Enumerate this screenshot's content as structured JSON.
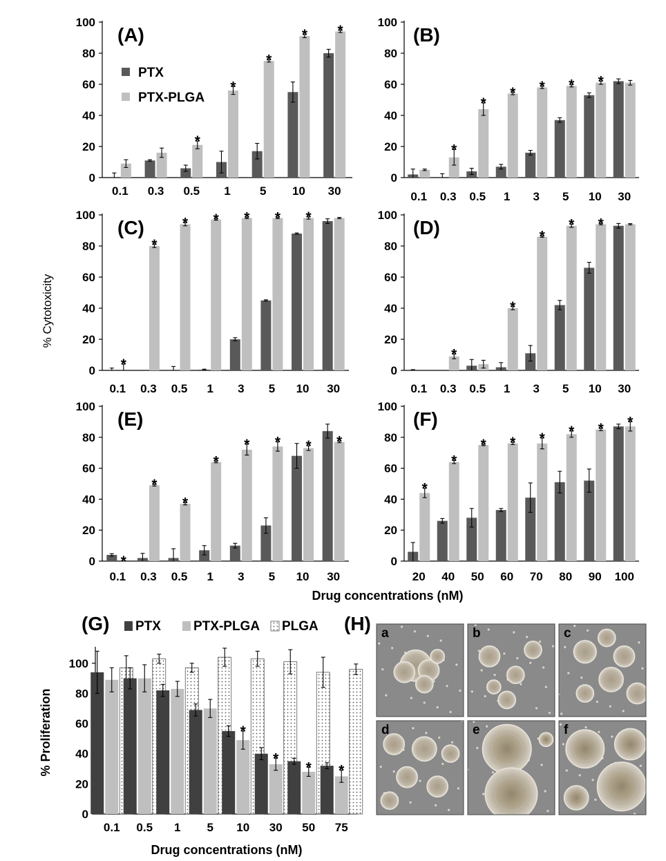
{
  "chart_data": [
    {
      "id": "A",
      "panel_label": "(A)",
      "type": "bar",
      "ylim": [
        0,
        100
      ],
      "yticks": [
        "0",
        "20",
        "40",
        "60",
        "80",
        "100"
      ],
      "categories": [
        "0.1",
        "0.3",
        "0.5",
        "1",
        "5",
        "10",
        "30"
      ],
      "legend": [
        "PTX",
        "PTX-PLGA"
      ],
      "series": [
        {
          "name": "PTX",
          "color": "#595959",
          "values": [
            0,
            11,
            6,
            10,
            17,
            55,
            80
          ],
          "errors": [
            3,
            0.5,
            2,
            7,
            5,
            6.5,
            2.5
          ],
          "stars": [
            false,
            false,
            false,
            false,
            false,
            false,
            false
          ]
        },
        {
          "name": "PTX-PLGA",
          "color": "#bfbfbf",
          "values": [
            9,
            16,
            21,
            56,
            75,
            91,
            94
          ],
          "errors": [
            2.5,
            3,
            2.5,
            2.5,
            0.7,
            1,
            0.7
          ],
          "stars": [
            false,
            false,
            true,
            true,
            true,
            true,
            true
          ]
        }
      ]
    },
    {
      "id": "B",
      "panel_label": "(B)",
      "type": "bar",
      "ylim": [
        0,
        100
      ],
      "yticks": [
        "0",
        "20",
        "40",
        "60",
        "80",
        "100"
      ],
      "categories": [
        "0.1",
        "0.3",
        "0.5",
        "1",
        "3",
        "5",
        "10",
        "30"
      ],
      "series": [
        {
          "name": "PTX",
          "color": "#595959",
          "values": [
            2,
            0,
            4,
            7,
            16,
            37,
            53,
            62
          ],
          "errors": [
            3.5,
            2.5,
            2,
            1.5,
            1.5,
            1.5,
            1.5,
            1.5
          ],
          "stars": [
            false,
            false,
            false,
            false,
            false,
            false,
            false,
            false
          ]
        },
        {
          "name": "PTX-PLGA",
          "color": "#bfbfbf",
          "values": [
            5,
            13,
            44,
            54,
            58,
            59,
            61,
            61
          ],
          "errors": [
            0.5,
            5,
            4,
            0.7,
            0.7,
            0.7,
            1,
            1.5
          ],
          "stars": [
            false,
            true,
            true,
            true,
            true,
            true,
            true,
            false
          ]
        }
      ]
    },
    {
      "id": "C",
      "panel_label": "(C)",
      "type": "bar",
      "ylim": [
        0,
        100
      ],
      "yticks": [
        "0",
        "20",
        "40",
        "60",
        "80",
        "100"
      ],
      "categories": [
        "0.1",
        "0.3",
        "0.5",
        "1",
        "3",
        "5",
        "10",
        "30"
      ],
      "series": [
        {
          "name": "PTX",
          "color": "#595959",
          "values": [
            0,
            0,
            0,
            0.5,
            20,
            45,
            88,
            96
          ],
          "errors": [
            1.5,
            0,
            2.5,
            0.3,
            1,
            0.4,
            0.4,
            1.5
          ],
          "stars": [
            false,
            false,
            false,
            false,
            false,
            false,
            false,
            false
          ]
        },
        {
          "name": "PTX-PLGA",
          "color": "#bfbfbf",
          "values": [
            0,
            80,
            94,
            97,
            98,
            98,
            98,
            98
          ],
          "errors": [
            4,
            1,
            1,
            0.4,
            0.4,
            0.4,
            0.7,
            0.4
          ],
          "stars": [
            true,
            true,
            true,
            true,
            true,
            true,
            true,
            false
          ]
        }
      ]
    },
    {
      "id": "D",
      "panel_label": "(D)",
      "type": "bar",
      "ylim": [
        0,
        100
      ],
      "yticks": [
        "0",
        "20",
        "40",
        "60",
        "80",
        "100"
      ],
      "categories": [
        "0.1",
        "0.3",
        "0.5",
        "1",
        "3",
        "5",
        "10",
        "30"
      ],
      "series": [
        {
          "name": "PTX",
          "color": "#595959",
          "values": [
            0,
            0,
            3,
            2,
            11,
            42,
            66,
            93
          ],
          "errors": [
            0.5,
            0,
            4,
            3,
            5,
            3,
            3.5,
            1.5
          ],
          "stars": [
            false,
            false,
            false,
            false,
            false,
            false,
            false,
            false
          ]
        },
        {
          "name": "PTX-PLGA",
          "color": "#bfbfbf",
          "values": [
            0,
            9,
            4,
            40,
            86,
            93,
            94,
            94
          ],
          "errors": [
            0,
            1.5,
            2.5,
            1,
            0.4,
            1,
            0.4,
            0.4
          ],
          "stars": [
            false,
            true,
            false,
            true,
            true,
            true,
            true,
            false
          ]
        }
      ]
    },
    {
      "id": "E",
      "panel_label": "(E)",
      "type": "bar",
      "ylim": [
        0,
        100
      ],
      "yticks": [
        "0",
        "20",
        "40",
        "60",
        "80",
        "100"
      ],
      "categories": [
        "0.1",
        "0.3",
        "0.5",
        "1",
        "3",
        "5",
        "10",
        "30"
      ],
      "series": [
        {
          "name": "PTX",
          "color": "#595959",
          "values": [
            4,
            2,
            2,
            7,
            10,
            23,
            68,
            84
          ],
          "errors": [
            0.8,
            3,
            6,
            3,
            1.5,
            5,
            8,
            4.5
          ],
          "stars": [
            false,
            false,
            false,
            false,
            false,
            false,
            false,
            false
          ]
        },
        {
          "name": "PTX-PLGA",
          "color": "#bfbfbf",
          "values": [
            0,
            49,
            37,
            64,
            72,
            74,
            73,
            77
          ],
          "errors": [
            0,
            0.5,
            0.7,
            0.5,
            3.5,
            3,
            1.5,
            0.5
          ],
          "stars": [
            true,
            true,
            true,
            true,
            true,
            true,
            true,
            true
          ]
        }
      ]
    },
    {
      "id": "F",
      "panel_label": "(F)",
      "type": "bar",
      "ylim": [
        0,
        100
      ],
      "yticks": [
        "0",
        "20",
        "40",
        "60",
        "80",
        "100"
      ],
      "categories": [
        "20",
        "40",
        "50",
        "60",
        "70",
        "80",
        "90",
        "100"
      ],
      "series": [
        {
          "name": "PTX",
          "color": "#595959",
          "values": [
            6,
            26,
            28,
            33,
            41,
            51,
            52,
            87
          ],
          "errors": [
            6,
            1.5,
            6,
            1,
            9.5,
            7,
            7.5,
            1.5
          ],
          "stars": [
            false,
            false,
            false,
            false,
            false,
            false,
            false,
            false
          ]
        },
        {
          "name": "PTX-PLGA",
          "color": "#bfbfbf",
          "values": [
            44,
            64,
            75,
            76,
            76,
            82,
            85,
            87
          ],
          "errors": [
            3,
            1,
            0.4,
            0.7,
            3.5,
            2,
            0.7,
            3
          ],
          "stars": [
            true,
            true,
            true,
            true,
            true,
            true,
            true,
            true
          ]
        }
      ]
    },
    {
      "id": "G",
      "panel_label": "(G)",
      "type": "bar",
      "ylim": [
        0,
        110
      ],
      "yticks": [
        "0",
        "20",
        "40",
        "60",
        "80",
        "100"
      ],
      "categories": [
        "0.1",
        "0.5",
        "1",
        "5",
        "10",
        "30",
        "50",
        "75"
      ],
      "ylabel": "% Proliferation",
      "xlabel": "Drug concentrations (nM)",
      "legend": [
        "PTX",
        "PTX-PLGA",
        "PLGA"
      ],
      "series": [
        {
          "name": "PTX",
          "color": "#404040",
          "values": [
            94,
            90,
            82,
            69,
            55,
            40,
            35,
            32
          ],
          "errors": [
            14,
            7,
            4,
            4,
            3.5,
            4,
            2,
            2
          ],
          "stars": [
            false,
            false,
            false,
            false,
            false,
            false,
            false,
            false
          ]
        },
        {
          "name": "PTX-PLGA",
          "color": "#bfbfbf",
          "values": [
            89,
            90,
            83,
            70,
            49,
            33,
            28,
            25
          ],
          "errors": [
            8,
            9,
            5,
            6,
            6,
            4,
            3,
            4
          ],
          "stars": [
            false,
            false,
            false,
            false,
            true,
            true,
            true,
            true
          ]
        },
        {
          "name": "PLGA",
          "color": "#ffffff",
          "pattern": "dots",
          "values": [
            97,
            103,
            97,
            104,
            103,
            101,
            94,
            96
          ],
          "errors": [
            8,
            3,
            3,
            6,
            5,
            8,
            10,
            3.5
          ],
          "stars": [
            false,
            false,
            false,
            false,
            false,
            false,
            false,
            false
          ]
        }
      ]
    }
  ],
  "labels": {
    "shared_ylabel": "% Cytotoxicity",
    "shared_xlabel": "Drug concentrations (nM)",
    "star_symbol": "*"
  },
  "micrographs": {
    "panel_label": "(H)",
    "images": [
      {
        "label": "a",
        "clusters": "small"
      },
      {
        "label": "b",
        "clusters": "small"
      },
      {
        "label": "c",
        "clusters": "medium"
      },
      {
        "label": "d",
        "clusters": "medium"
      },
      {
        "label": "e",
        "clusters": "large"
      },
      {
        "label": "f",
        "clusters": "large"
      }
    ]
  }
}
